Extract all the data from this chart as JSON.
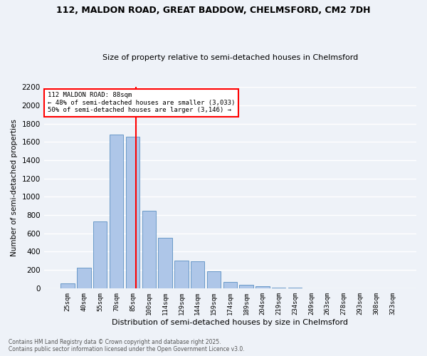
{
  "title1": "112, MALDON ROAD, GREAT BADDOW, CHELMSFORD, CM2 7DH",
  "title2": "Size of property relative to semi-detached houses in Chelmsford",
  "xlabel": "Distribution of semi-detached houses by size in Chelmsford",
  "ylabel": "Number of semi-detached properties",
  "bar_labels": [
    "25sqm",
    "40sqm",
    "55sqm",
    "70sqm",
    "85sqm",
    "100sqm",
    "114sqm",
    "129sqm",
    "144sqm",
    "159sqm",
    "174sqm",
    "189sqm",
    "204sqm",
    "219sqm",
    "234sqm",
    "249sqm",
    "263sqm",
    "278sqm",
    "293sqm",
    "308sqm",
    "323sqm"
  ],
  "bar_values": [
    50,
    225,
    730,
    1680,
    1660,
    845,
    555,
    300,
    295,
    185,
    65,
    40,
    25,
    10,
    5,
    2,
    1,
    0,
    0,
    0,
    0
  ],
  "bar_color": "#aec6e8",
  "bar_edge_color": "#5a8fc2",
  "vline_color": "red",
  "annotation_title": "112 MALDON ROAD: 88sqm",
  "annotation_line1": "← 48% of semi-detached houses are smaller (3,033)",
  "annotation_line2": "50% of semi-detached houses are larger (3,146) →",
  "ylim": [
    0,
    2200
  ],
  "yticks": [
    0,
    200,
    400,
    600,
    800,
    1000,
    1200,
    1400,
    1600,
    1800,
    2000,
    2200
  ],
  "footer1": "Contains HM Land Registry data © Crown copyright and database right 2025.",
  "footer2": "Contains public sector information licensed under the Open Government Licence v3.0.",
  "bg_color": "#eef2f8",
  "grid_color": "#ffffff"
}
